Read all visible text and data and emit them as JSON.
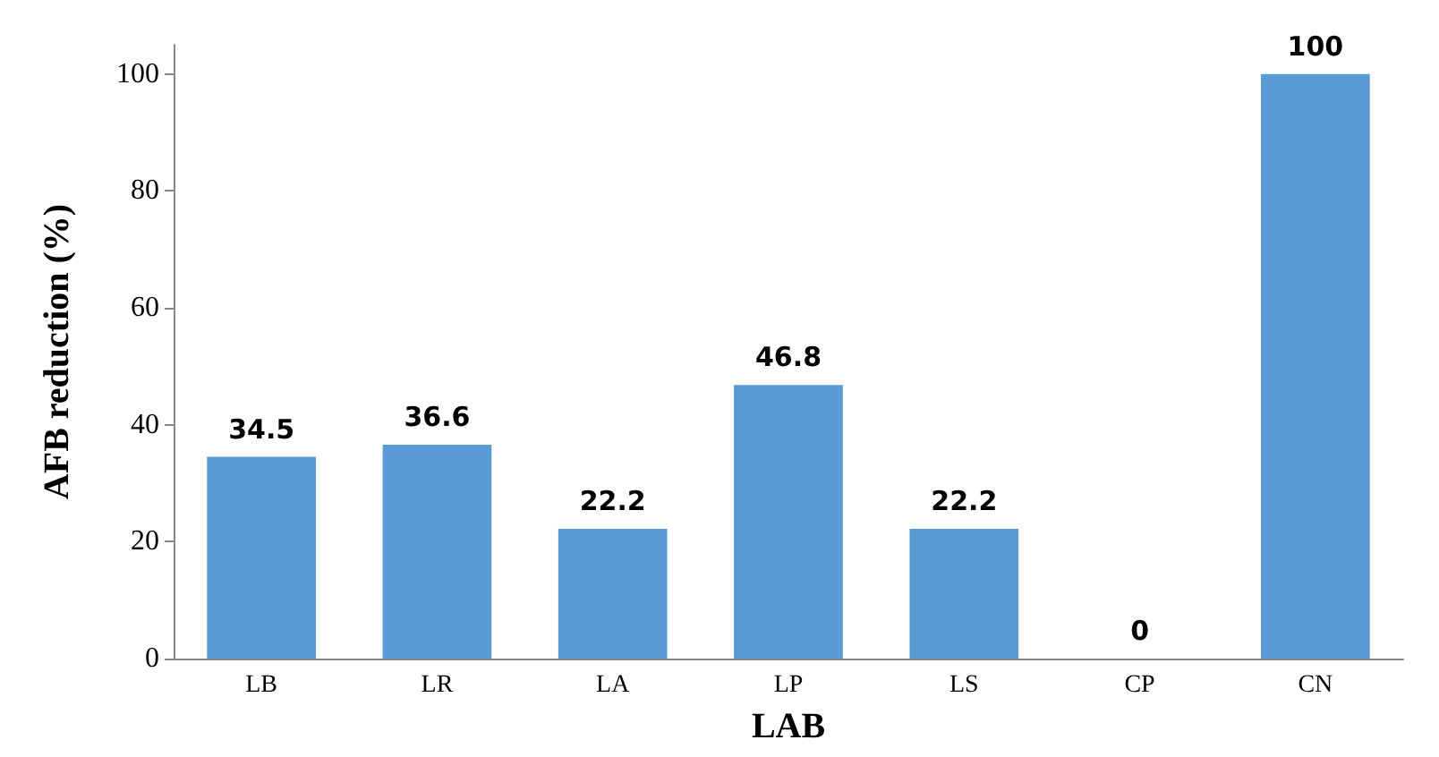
{
  "chart_data": {
    "type": "bar",
    "xlabel": "LAB",
    "ylabel": "AFB reduction (%)",
    "categories": [
      "LB",
      "LR",
      "LA",
      "LP",
      "LS",
      "CP",
      "CN"
    ],
    "values": [
      34.5,
      36.6,
      22.2,
      46.8,
      22.2,
      0,
      100
    ],
    "color": "#5b9bd5",
    "ylim": [
      0,
      105
    ],
    "yticks": [
      0,
      20,
      40,
      60,
      80,
      100
    ],
    "grid": false,
    "data_labels": true
  }
}
